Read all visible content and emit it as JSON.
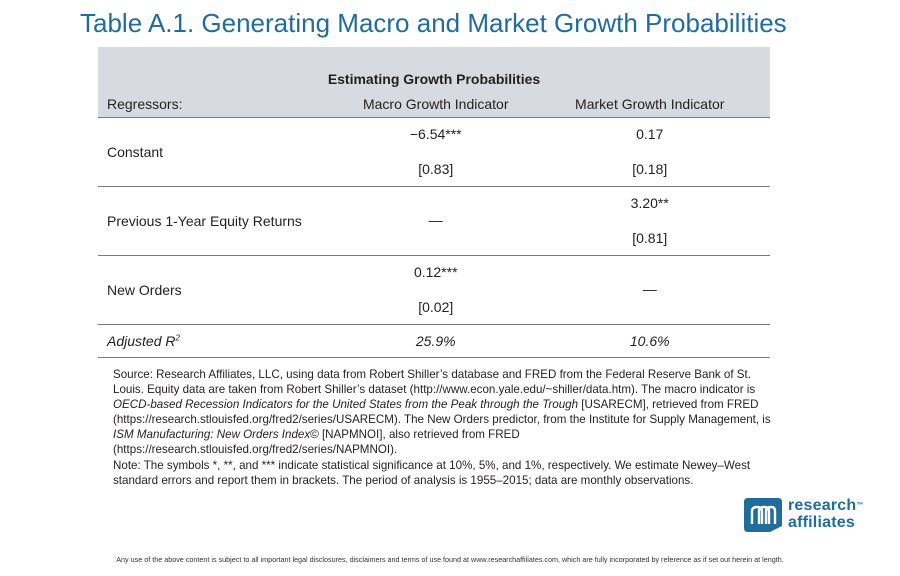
{
  "title": "Table A.1.  Generating Macro and Market Growth Probabilities",
  "table": {
    "group_header": "Estimating Growth Probabilities",
    "columns": [
      "Regressors:",
      "Macro Growth Indicator",
      "Market Growth Indicator"
    ],
    "rows": [
      {
        "label": "Constant",
        "macro_coef": "−6.54***",
        "macro_se": "[0.83]",
        "market_coef": "0.17",
        "market_se": "[0.18]"
      },
      {
        "label": "Previous 1-Year Equity Returns",
        "macro_value": "—",
        "market_coef": "3.20**",
        "market_se": "[0.81]"
      },
      {
        "label": "New Orders",
        "macro_coef": "0.12***",
        "macro_se": "[0.02]",
        "market_value": "—"
      }
    ],
    "adjusted": {
      "label": "Adjusted R",
      "sup": "2",
      "macro": "25.9%",
      "market": "10.6%"
    }
  },
  "notes": {
    "source_1": "Source: Research Affiliates, LLC, using data from Robert Shiller’s database and FRED from the Federal Reserve Bank of St. Louis. Equity data are taken from Robert Shiller’s dataset (http://www.econ.yale.edu/~shiller/data.htm). The macro indicator is ",
    "source_italic_1": "OECD-based Recession Indicators for the United States from the Peak through the Trough",
    "source_2": " [USARECM], retrieved from FRED (https://research.stlouisfed.org/fred2/series/USARECM). The New Orders predictor, from the Institute for Supply Management, is ",
    "source_italic_2": "ISM Manufacturing: New Orders Index",
    "source_3": "© [NAPMNOI], also retrieved from FRED (https://research.stlouisfed.org/fred2/series/NAPMNOI).",
    "note": "Note: The symbols *, **, and *** indicate statistical significance at 10%, 5%, and 1%, respectively. We estimate Newey–West standard errors and report them in brackets. The period of analysis is 1955–2015; data are monthly observations."
  },
  "logo": {
    "line1": "research",
    "line2": "affiliates",
    "tm": "™",
    "brand_color": "#1f6c9d"
  },
  "footer": "Any use of the above content is subject to all important legal disclosures, disclaimers and terms of use found at www.researchaffiliates.com, which are fully incorporated by reference as if set out herein at length."
}
